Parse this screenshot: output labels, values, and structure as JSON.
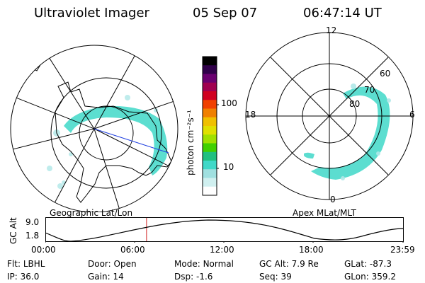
{
  "header": {
    "instrument": "Ultraviolet Imager",
    "date": "05 Sep 07",
    "time": "06:47:14 UT"
  },
  "left_map": {
    "caption": "Geographic Lat/Lon"
  },
  "colorbar": {
    "unit_label": "photon cm⁻²s⁻¹",
    "ticks": [
      "100",
      "10"
    ],
    "colors": [
      "#000000",
      "#30004a",
      "#6a0070",
      "#a00050",
      "#d00020",
      "#f04000",
      "#f08000",
      "#f0c000",
      "#e0e000",
      "#a0e000",
      "#40d000",
      "#20c080",
      "#40d8c8",
      "#a0e0e0",
      "#d0f0f0",
      "#ffffff"
    ]
  },
  "right_map": {
    "caption": "Apex MLat/MLT",
    "mlt_labels": {
      "top": "12",
      "bottom": "0",
      "left": "18",
      "right": "6"
    },
    "lat_labels": [
      "60",
      "70",
      "80"
    ]
  },
  "altitude_plot": {
    "ylabel": "GC Alt",
    "yticks": [
      "9.0",
      "1.8"
    ],
    "xticks": [
      "00:00",
      "06:00",
      "12:00",
      "18:00",
      "23:59"
    ],
    "marker_time_hours": 6.79
  },
  "info": {
    "row1": [
      {
        "label": "Flt:",
        "value": "LBHL"
      },
      {
        "label": "Door:",
        "value": "Open"
      },
      {
        "label": "Mode:",
        "value": "Normal"
      },
      {
        "label": "GC Alt:",
        "value": "7.9 Re"
      },
      {
        "label": "GLat:",
        "value": "-87.3"
      }
    ],
    "row2": [
      {
        "label": "IP:",
        "value": "36.0"
      },
      {
        "label": "Gain:",
        "value": "14"
      },
      {
        "label": "Dsp:",
        "value": "-1.6"
      },
      {
        "label": "Seq:",
        "value": "39"
      },
      {
        "label": "GLon:",
        "value": "359.2"
      }
    ]
  },
  "colors": {
    "aurora": "#40d8c8",
    "aurora_faint": "#b0e8e8",
    "marker": "#d02020",
    "terminator": "#2040e0"
  }
}
